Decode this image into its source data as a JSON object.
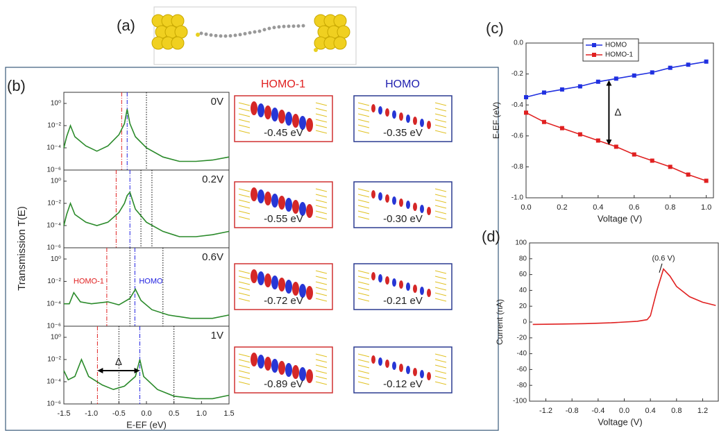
{
  "panels": [
    "(a)",
    "(b)",
    "(c)",
    "(d)"
  ],
  "orbitals": {
    "headers": [
      "HOMO-1",
      "HOMO"
    ],
    "energies": [
      [
        "-0.45 eV",
        "-0.35 eV"
      ],
      [
        "-0.55 eV",
        "-0.30 eV"
      ],
      [
        "-0.72 eV",
        "-0.21 eV"
      ],
      [
        "-0.89 eV",
        "-0.12 eV"
      ]
    ]
  },
  "chart_data": [
    {
      "type": "line",
      "annotation": "0V",
      "log_y": true,
      "color": "#2a8a2a",
      "ylabel": "Transmission T(E)",
      "xlim": [
        -1.5,
        1.5
      ],
      "ylim": [
        1e-06,
        10
      ],
      "yticks": [
        {
          "value": 1e-06,
          "label": "10⁻⁶"
        },
        {
          "value": 0.0001,
          "label": "10⁻⁴"
        },
        {
          "value": 0.01,
          "label": "10⁻²"
        },
        {
          "value": 1,
          "label": "10⁰"
        }
      ],
      "x": [
        -1.5,
        -1.45,
        -1.38,
        -1.3,
        -1.1,
        -0.9,
        -0.7,
        -0.5,
        -0.4,
        -0.35,
        -0.3,
        -0.2,
        0,
        0.3,
        0.6,
        0.9,
        1.2,
        1.5
      ],
      "values": [
        0.0001,
        0.001,
        0.01,
        0.001,
        0.00015,
        5e-05,
        0.00015,
        0.0015,
        0.015,
        0.3,
        0.015,
        0.001,
        0.0001,
        1.5e-05,
        6e-06,
        6e-06,
        8e-06,
        1.5e-05
      ],
      "vlines": [
        {
          "x": -0.45,
          "color": "#e02020",
          "style": "dashdot"
        },
        {
          "x": -0.35,
          "color": "#2020e0",
          "style": "dashdot"
        },
        {
          "x": 0,
          "color": "#000000",
          "style": "dot"
        }
      ]
    },
    {
      "type": "line",
      "annotation": "0.2V",
      "log_y": true,
      "color": "#2a8a2a",
      "xlim": [
        -1.5,
        1.5
      ],
      "ylim": [
        1e-06,
        10
      ],
      "yticks": [
        {
          "value": 1e-06,
          "label": "10⁻⁶"
        },
        {
          "value": 0.0001,
          "label": "10⁻⁴"
        },
        {
          "value": 0.01,
          "label": "10⁻²"
        },
        {
          "value": 1,
          "label": "10⁰"
        }
      ],
      "x": [
        -1.5,
        -1.45,
        -1.38,
        -1.3,
        -1.1,
        -0.9,
        -0.7,
        -0.5,
        -0.4,
        -0.35,
        -0.3,
        -0.2,
        0,
        0.3,
        0.6,
        0.9,
        1.2,
        1.5
      ],
      "values": [
        0.0001,
        0.001,
        0.01,
        0.001,
        0.0002,
        0.0001,
        0.0002,
        0.0015,
        0.01,
        0.05,
        0.1,
        0.003,
        0.0002,
        3e-05,
        1e-05,
        1e-05,
        1.5e-05,
        3e-05
      ],
      "vlines": [
        {
          "x": -0.55,
          "color": "#e02020",
          "style": "dashdot"
        },
        {
          "x": -0.3,
          "color": "#2020e0",
          "style": "dashdot"
        },
        {
          "x": -0.1,
          "color": "#000000",
          "style": "dot"
        },
        {
          "x": 0.1,
          "color": "#000000",
          "style": "dot"
        }
      ]
    },
    {
      "type": "line",
      "annotation": "0.6V",
      "log_y": true,
      "color": "#2a8a2a",
      "labels": [
        "HOMO-1",
        "HOMO"
      ],
      "xlim": [
        -1.5,
        1.5
      ],
      "ylim": [
        1e-06,
        10
      ],
      "yticks": [
        {
          "value": 1e-06,
          "label": "10⁻⁶"
        },
        {
          "value": 0.0001,
          "label": "10⁻⁴"
        },
        {
          "value": 0.01,
          "label": "10⁻²"
        },
        {
          "value": 1,
          "label": "10⁰"
        }
      ],
      "x": [
        -1.5,
        -1.4,
        -1.32,
        -1.2,
        -1.0,
        -0.7,
        -0.5,
        -0.3,
        -0.2,
        -0.1,
        0.1,
        0.4,
        0.8,
        1.2,
        1.5
      ],
      "values": [
        0.0001,
        0.0001,
        0.001,
        0.00015,
        0.0001,
        0.00015,
        8e-05,
        0.0003,
        0.002,
        0.0002,
        3e-05,
        1e-05,
        5e-06,
        5e-06,
        1e-05
      ],
      "vlines": [
        {
          "x": -0.72,
          "color": "#e02020",
          "style": "dashdot"
        },
        {
          "x": -0.21,
          "color": "#2020e0",
          "style": "dashdot"
        },
        {
          "x": -0.3,
          "color": "#000000",
          "style": "dot"
        },
        {
          "x": 0.3,
          "color": "#000000",
          "style": "dot"
        }
      ]
    },
    {
      "type": "line",
      "annotation": "1V",
      "log_y": true,
      "color": "#2a8a2a",
      "arrow_label": "Δ",
      "xlabel": "E-EF (eV)",
      "xlim": [
        -1.5,
        1.5
      ],
      "ylim": [
        1e-06,
        10
      ],
      "xticks": [
        -1.5,
        {
          "value": -1.0,
          "label": "-1.0"
        },
        -0.5,
        {
          "value": 0,
          "label": "0.0"
        },
        0.5,
        {
          "value": 1.0,
          "label": "1.0"
        },
        1.5
      ],
      "yticks": [
        {
          "value": 1e-06,
          "label": "10⁻⁶"
        },
        {
          "value": 0.0001,
          "label": "10⁻⁴"
        },
        {
          "value": 0.01,
          "label": "10⁻²"
        },
        {
          "value": 1,
          "label": "10⁰"
        }
      ],
      "x": [
        -1.5,
        -1.42,
        -1.3,
        -1.18,
        -1.05,
        -0.8,
        -0.6,
        -0.4,
        -0.2,
        -0.12,
        -0.05,
        0.2,
        0.5,
        0.9,
        1.2,
        1.5
      ],
      "values": [
        0.001,
        0.00015,
        0.0003,
        0.01,
        0.0003,
        5e-05,
        2e-05,
        4e-05,
        0.0003,
        0.01,
        0.0003,
        2e-05,
        5e-06,
        3e-06,
        3e-06,
        6e-06
      ],
      "vlines": [
        {
          "x": -0.89,
          "color": "#e02020",
          "style": "dashdot"
        },
        {
          "x": -0.12,
          "color": "#2020e0",
          "style": "dashdot"
        },
        {
          "x": -0.5,
          "color": "#000000",
          "style": "dot"
        },
        {
          "x": 0.5,
          "color": "#000000",
          "style": "dot"
        }
      ]
    },
    {
      "type": "line",
      "markers": true,
      "xlabel": "Voltage (V)",
      "ylabel": "E-EF (eV)",
      "xlim": [
        0,
        1.04
      ],
      "ylim": [
        -1,
        0
      ],
      "xticks": [
        {
          "value": 0,
          "label": "0.0"
        },
        0.2,
        0.4,
        0.6,
        0.8,
        {
          "value": 1.0,
          "label": "1.0"
        }
      ],
      "yticks": [
        {
          "value": -1.0,
          "label": "-1.0"
        },
        -0.8,
        -0.6,
        -0.4,
        -0.2,
        {
          "value": 0,
          "label": "0.0"
        }
      ],
      "x": [
        0,
        0.1,
        0.2,
        0.3,
        0.4,
        0.5,
        0.6,
        0.7,
        0.8,
        0.9,
        1.0
      ],
      "series": [
        {
          "name": "HOMO",
          "color": "#2030e0",
          "values": [
            -0.35,
            -0.32,
            -0.3,
            -0.28,
            -0.25,
            -0.23,
            -0.21,
            -0.19,
            -0.16,
            -0.14,
            -0.12
          ]
        },
        {
          "name": "HOMO-1",
          "color": "#e02020",
          "values": [
            -0.45,
            -0.51,
            -0.55,
            -0.59,
            -0.63,
            -0.67,
            -0.72,
            -0.76,
            -0.8,
            -0.85,
            -0.89
          ]
        }
      ],
      "arrow": {
        "x": 0.46,
        "y1": -0.24,
        "y2": -0.66,
        "label": "Δ"
      }
    },
    {
      "type": "line",
      "xlabel": "Voltage (V)",
      "ylabel": "Current (nA)",
      "color": "#e02020",
      "xlim": [
        -1.45,
        1.45
      ],
      "ylim": [
        -100,
        100
      ],
      "xticks": [
        -1.2,
        -0.8,
        -0.4,
        {
          "value": 0,
          "label": "0.0"
        },
        0.4,
        0.8,
        1.2
      ],
      "yticks": [
        -100,
        -80,
        -60,
        -40,
        -20,
        0,
        20,
        40,
        60,
        80,
        100
      ],
      "x": [
        -1.4,
        -1.0,
        -0.6,
        -0.2,
        0.2,
        0.35,
        0.4,
        0.5,
        0.6,
        0.7,
        0.8,
        1.0,
        1.2,
        1.4
      ],
      "values": [
        -3,
        -2.5,
        -2,
        -1,
        1,
        3,
        8,
        40,
        67,
        58,
        45,
        32,
        25,
        21
      ],
      "annotation": {
        "text": "(0.6 V)",
        "x": 0.6,
        "y": 80
      }
    }
  ]
}
